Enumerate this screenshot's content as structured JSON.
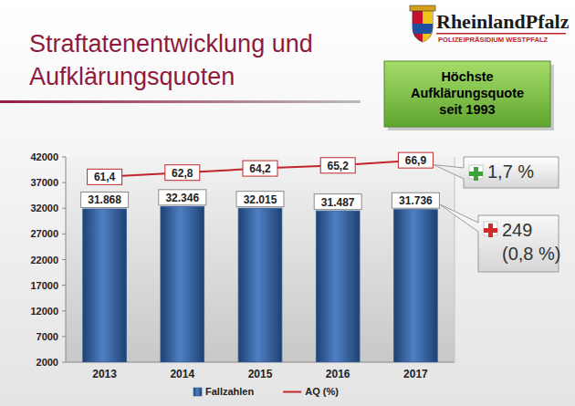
{
  "chart_data": {
    "type": "bar",
    "title": "Straftatenentwicklung und Aufklärungsquoten",
    "annotations": [
      "Höchste Aufklärungsquote seit 1993",
      "1,7 %",
      "249 (0,8 %)",
      "RheinlandPfalz",
      "POLIZEIPRÄSIDIUM WESTPFALZ"
    ],
    "categories": [
      "2013",
      "2014",
      "2015",
      "2016",
      "2017"
    ],
    "series": [
      {
        "name": "Fallzahlen",
        "type": "bar",
        "color": "#2f5d9b",
        "values": [
          31868,
          32346,
          32015,
          31487,
          31736
        ],
        "value_labels": [
          "31.868",
          "32.346",
          "32.015",
          "31.487",
          "31.736"
        ]
      },
      {
        "name": "AQ (%)",
        "type": "line",
        "color": "#c0262c",
        "axis": "y2",
        "marker": "none",
        "line_style": "solid",
        "values": [
          61.4,
          62.8,
          64.2,
          65.2,
          66.9
        ],
        "value_labels": [
          "61,4",
          "62,8",
          "64,2",
          "65,2",
          "66,9"
        ]
      }
    ],
    "ylim": [
      2000,
      42000
    ],
    "yticks": [
      2000,
      7000,
      12000,
      17000,
      22000,
      27000,
      32000,
      37000,
      42000
    ],
    "y2lim": [
      0,
      68
    ],
    "tick_labels": "y",
    "grid": false,
    "legend": "bottom",
    "data_labels": true
  }
}
